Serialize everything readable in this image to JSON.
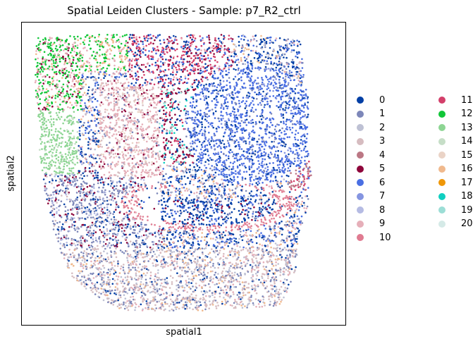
{
  "chart_data": {
    "type": "scatter",
    "title": "Spatial Leiden Clusters - Sample: p7_R2_ctrl",
    "xlabel": "spatial1",
    "ylabel": "spatial2",
    "xticks": [],
    "yticks": [],
    "grid": false,
    "legend_position": "right",
    "legend_columns": 2,
    "categories": [
      "0",
      "1",
      "2",
      "3",
      "4",
      "5",
      "6",
      "7",
      "8",
      "9",
      "10",
      "11",
      "12",
      "13",
      "14",
      "15",
      "16",
      "17",
      "18",
      "19",
      "20"
    ],
    "colors": [
      "#023fa5",
      "#7d87b9",
      "#bec1d4",
      "#d6bcc0",
      "#bb7784",
      "#8e063b",
      "#4a6fe3",
      "#8595e1",
      "#b5bbe3",
      "#e6afb9",
      "#e07b91",
      "#d33f6a",
      "#11c638",
      "#8dd593",
      "#c6dec7",
      "#ead3c6",
      "#f0b98d",
      "#ef9708",
      "#0fcfc0",
      "#9cded6",
      "#d5eae7"
    ]
  }
}
